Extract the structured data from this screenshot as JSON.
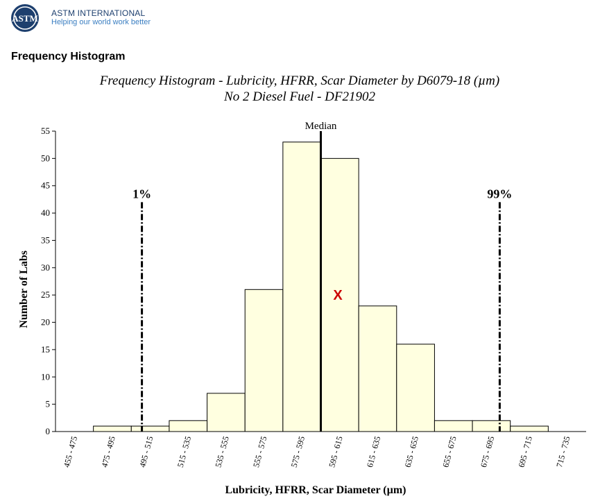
{
  "header": {
    "org_name": "ASTM INTERNATIONAL",
    "tagline": "Helping our world work better",
    "logo_text": "ASTM",
    "logo_icon": "astm-logo-icon",
    "brand_color": "#1d3f6e",
    "tagline_color": "#3a7ec1"
  },
  "section": {
    "title": "Frequency Histogram"
  },
  "chart_data": {
    "type": "bar",
    "title": "Frequency Histogram - Lubricity, HFRR, Scar Diameter by D6079-18 (µm)",
    "subtitle": "No 2 Diesel Fuel - DF21902",
    "xlabel": "Lubricity, HFRR, Scar Diameter (µm)",
    "ylabel": "Number of Labs",
    "categories": [
      "455 - 475",
      "475 - 495",
      "495 - 515",
      "515 - 535",
      "535 - 555",
      "555 - 575",
      "575 - 595",
      "595 - 615",
      "615 - 635",
      "635 - 655",
      "655 - 675",
      "675 - 695",
      "695 - 715",
      "715 - 735"
    ],
    "values": [
      0,
      1,
      1,
      2,
      7,
      26,
      53,
      50,
      23,
      16,
      2,
      2,
      1,
      0
    ],
    "ylim": [
      0,
      55
    ],
    "yticks": [
      0,
      5,
      10,
      15,
      20,
      25,
      30,
      35,
      40,
      45,
      50,
      55
    ],
    "grid": false,
    "bar_color": "#ffffe0",
    "markers": [
      {
        "label": "1%",
        "category_index": 2,
        "offset": 0.28,
        "y_top": 42,
        "style": "dashdot"
      },
      {
        "label": "99%",
        "category_index": 11,
        "offset": 0.72,
        "y_top": 42,
        "style": "dashdot"
      },
      {
        "label": "Median",
        "category_index": 7,
        "offset": 0.0,
        "y_top": 55,
        "style": "solid"
      }
    ],
    "mean_marker": {
      "symbol": "X",
      "category_index": 7,
      "offset": 0.45,
      "y": 25,
      "color": "#cc0000"
    }
  }
}
